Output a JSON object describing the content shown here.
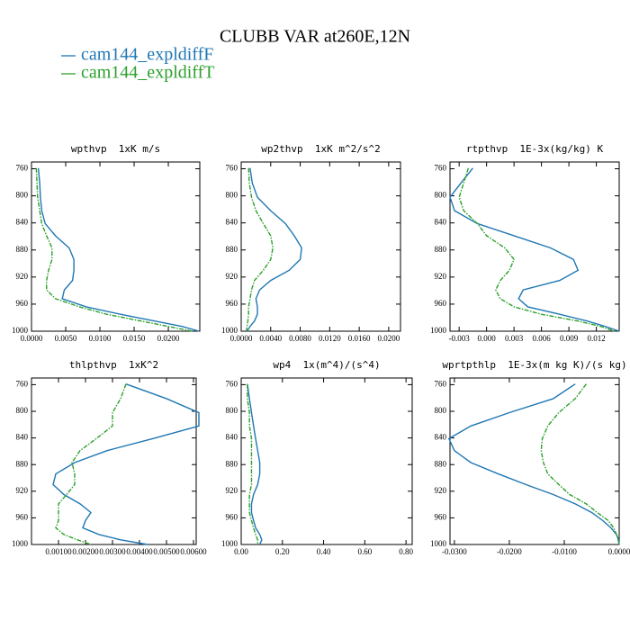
{
  "title": "CLUBB VAR at260E,12N",
  "legend": [
    {
      "name": "cam144_expldiffF",
      "color": "#1f77b4"
    },
    {
      "name": "cam144_expldiffT",
      "color": "#2ca02c"
    }
  ],
  "chart_data": [
    {
      "type": "line",
      "title": "wpthvp  1xK m/s",
      "y": [
        759,
        781,
        802,
        822,
        841,
        859,
        877,
        894,
        910,
        925,
        939,
        952,
        964,
        975,
        985,
        993,
        1000
      ],
      "ylim": [
        1000,
        750
      ],
      "yticks": [
        760,
        800,
        840,
        880,
        920,
        960,
        1000
      ],
      "xlim": [
        0,
        0.0246
      ],
      "xticks": [
        {
          "value": 0,
          "label": "0.0000"
        },
        {
          "value": 0.005,
          "label": "0.0050"
        },
        {
          "value": 0.01,
          "label": "0.0100"
        },
        {
          "value": 0.015,
          "label": "0.0150"
        },
        {
          "value": 0.02,
          "label": "0.0200"
        }
      ],
      "series": [
        {
          "values": [
            0.001,
            0.0012,
            0.0013,
            0.0015,
            0.002,
            0.0035,
            0.0055,
            0.0062,
            0.0062,
            0.006,
            0.0048,
            0.0045,
            0.008,
            0.013,
            0.018,
            0.022,
            0.0245
          ]
        },
        {
          "values": [
            0.0007,
            0.0008,
            0.0009,
            0.0012,
            0.0015,
            0.0022,
            0.003,
            0.003,
            0.0025,
            0.0022,
            0.0022,
            0.0035,
            0.007,
            0.011,
            0.016,
            0.02,
            0.0235
          ]
        }
      ]
    },
    {
      "type": "line",
      "title": "wp2thvp  1xK m^2/s^2",
      "y": [
        759,
        781,
        802,
        822,
        841,
        859,
        877,
        894,
        910,
        925,
        939,
        952,
        964,
        975,
        985,
        993,
        1000
      ],
      "ylim": [
        1000,
        750
      ],
      "yticks": [
        760,
        800,
        840,
        880,
        920,
        960,
        1000
      ],
      "xlim": [
        0,
        0.0216
      ],
      "xticks": [
        {
          "value": 0,
          "label": "0.0000"
        },
        {
          "value": 0.004,
          "label": "0.0040"
        },
        {
          "value": 0.008,
          "label": "0.0080"
        },
        {
          "value": 0.012,
          "label": "0.0120"
        },
        {
          "value": 0.016,
          "label": "0.0160"
        },
        {
          "value": 0.02,
          "label": "0.0200"
        }
      ],
      "series": [
        {
          "values": [
            0.0012,
            0.0015,
            0.0022,
            0.004,
            0.006,
            0.0072,
            0.0082,
            0.008,
            0.0065,
            0.004,
            0.0025,
            0.002,
            0.0022,
            0.0022,
            0.0018,
            0.0012,
            0.0008
          ]
        },
        {
          "values": [
            0.001,
            0.0011,
            0.0014,
            0.002,
            0.003,
            0.004,
            0.0043,
            0.004,
            0.003,
            0.0018,
            0.0014,
            0.0012,
            0.001,
            0.001,
            0.0009,
            0.0008,
            0.0007
          ]
        }
      ]
    },
    {
      "type": "line",
      "title": "rtpthvp  1E-3x(kg/kg) K",
      "y": [
        759,
        781,
        802,
        822,
        841,
        859,
        877,
        894,
        910,
        925,
        939,
        952,
        964,
        975,
        985,
        993,
        1000
      ],
      "ylim": [
        1000,
        750
      ],
      "yticks": [
        760,
        800,
        840,
        880,
        920,
        960,
        1000
      ],
      "xlim": [
        -0.004,
        0.0145
      ],
      "xticks": [
        {
          "value": -0.003,
          "label": "-0.003"
        },
        {
          "value": 0,
          "label": "0.000"
        },
        {
          "value": 0.003,
          "label": "0.003"
        },
        {
          "value": 0.006,
          "label": "0.006"
        },
        {
          "value": 0.009,
          "label": "0.009"
        },
        {
          "value": 0.012,
          "label": "0.012"
        }
      ],
      "series": [
        {
          "values": [
            -0.0015,
            -0.0028,
            -0.004,
            -0.0035,
            -0.001,
            0.003,
            0.007,
            0.0095,
            0.01,
            0.008,
            0.004,
            0.0035,
            0.0045,
            0.008,
            0.011,
            0.013,
            0.0145
          ]
        },
        {
          "values": [
            -0.002,
            -0.0025,
            -0.003,
            -0.0025,
            -0.001,
            0,
            0.002,
            0.003,
            0.0025,
            0.0015,
            0.001,
            0.0015,
            0.003,
            0.006,
            0.01,
            0.0125,
            0.014
          ]
        }
      ]
    },
    {
      "type": "line",
      "title": "thlpthvp  1xK^2",
      "y": [
        759,
        781,
        802,
        822,
        841,
        859,
        877,
        894,
        910,
        925,
        939,
        952,
        964,
        975,
        985,
        993,
        1000
      ],
      "ylim": [
        1000,
        750
      ],
      "yticks": [
        760,
        800,
        840,
        880,
        920,
        960,
        1000
      ],
      "xlim": [
        0,
        0.0061
      ],
      "xticks": [
        {
          "value": 0.001,
          "label": "0.00100"
        },
        {
          "value": 0.002,
          "label": "0.00200"
        },
        {
          "value": 0.003,
          "label": "0.00300"
        },
        {
          "value": 0.004,
          "label": "0.00400"
        },
        {
          "value": 0.005,
          "label": "0.00500"
        },
        {
          "value": 0.006,
          "label": "0.00600"
        }
      ],
      "series": [
        {
          "values": [
            0.0035,
            0.005,
            0.0062,
            0.0062,
            0.0045,
            0.0028,
            0.0016,
            0.0009,
            0.0008,
            0.0012,
            0.0018,
            0.0022,
            0.002,
            0.0019,
            0.0025,
            0.0033,
            0.0043
          ]
        },
        {
          "values": [
            0.0035,
            0.0033,
            0.003,
            0.003,
            0.0024,
            0.0018,
            0.0015,
            0.0016,
            0.0016,
            0.0013,
            0.001,
            0.001,
            0.001,
            0.0009,
            0.0012,
            0.0017,
            0.0022
          ]
        }
      ]
    },
    {
      "type": "line",
      "title": "wp4  1x(m^4)/(s^4)",
      "y": [
        759,
        781,
        802,
        822,
        841,
        859,
        877,
        894,
        910,
        925,
        939,
        952,
        964,
        975,
        985,
        993,
        1000
      ],
      "ylim": [
        1000,
        750
      ],
      "yticks": [
        760,
        800,
        840,
        880,
        920,
        960,
        1000
      ],
      "xlim": [
        0,
        0.83
      ],
      "xticks": [
        {
          "value": 0,
          "label": "0.00"
        },
        {
          "value": 0.2,
          "label": "0.20"
        },
        {
          "value": 0.4,
          "label": "0.40"
        },
        {
          "value": 0.6,
          "label": "0.60"
        },
        {
          "value": 0.8,
          "label": "0.80"
        }
      ],
      "series": [
        {
          "values": [
            0.03,
            0.04,
            0.05,
            0.06,
            0.07,
            0.08,
            0.09,
            0.09,
            0.08,
            0.06,
            0.05,
            0.05,
            0.06,
            0.07,
            0.09,
            0.1,
            0.09
          ]
        },
        {
          "values": [
            0.03,
            0.03,
            0.04,
            0.04,
            0.05,
            0.05,
            0.05,
            0.05,
            0.05,
            0.04,
            0.04,
            0.04,
            0.05,
            0.06,
            0.07,
            0.08,
            0.08
          ]
        }
      ]
    },
    {
      "type": "line",
      "title": "wprtpthlp  1E-3x(m kg K)/(s kg)",
      "y": [
        759,
        781,
        802,
        822,
        841,
        859,
        877,
        894,
        910,
        925,
        939,
        952,
        964,
        975,
        985,
        993,
        1000
      ],
      "ylim": [
        1000,
        750
      ],
      "yticks": [
        760,
        800,
        840,
        880,
        920,
        960,
        1000
      ],
      "xlim": [
        -0.0308,
        0
      ],
      "xticks": [
        {
          "value": -0.03,
          "label": "-0.0300"
        },
        {
          "value": -0.02,
          "label": "-0.0200"
        },
        {
          "value": -0.01,
          "label": "-0.0100"
        },
        {
          "value": 0,
          "label": "0.0000"
        }
      ],
      "series": [
        {
          "values": [
            -0.008,
            -0.012,
            -0.02,
            -0.027,
            -0.031,
            -0.03,
            -0.027,
            -0.022,
            -0.017,
            -0.012,
            -0.008,
            -0.005,
            -0.003,
            -0.0015,
            -0.0005,
            -0.0001,
            0
          ]
        },
        {
          "values": [
            -0.006,
            -0.008,
            -0.011,
            -0.013,
            -0.014,
            -0.0142,
            -0.0138,
            -0.013,
            -0.011,
            -0.009,
            -0.006,
            -0.004,
            -0.002,
            -0.001,
            -0.0005,
            -0.0002,
            0
          ]
        }
      ]
    }
  ]
}
